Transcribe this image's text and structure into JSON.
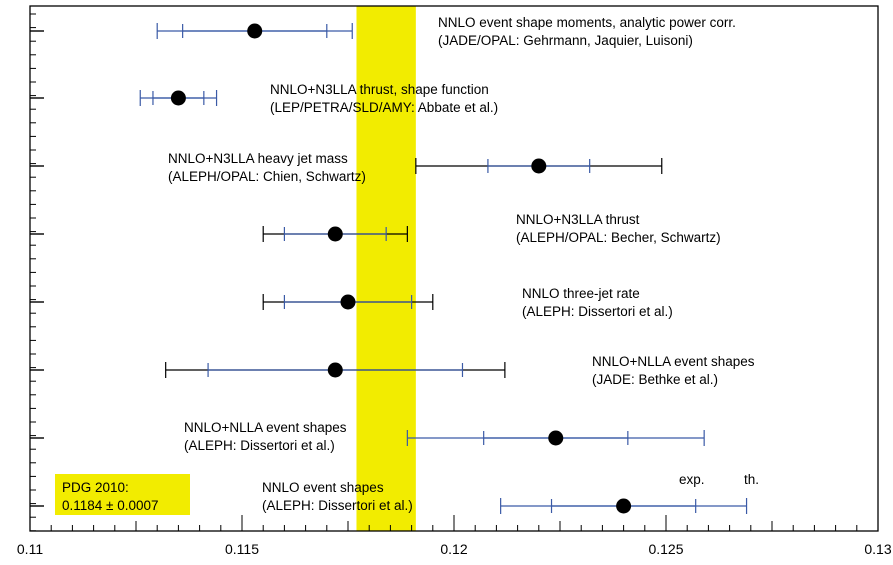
{
  "chart_data": {
    "type": "scatter",
    "xlim": [
      0.11,
      0.13
    ],
    "x_ticks": [
      "0.11",
      "0.115",
      "0.12",
      "0.125",
      "0.13"
    ],
    "x_tick_values": [
      0.11,
      0.115,
      0.12,
      0.125,
      0.13
    ],
    "band": {
      "low": 0.1177,
      "high": 0.1191,
      "color": "#f2ec00"
    },
    "pdg": {
      "line1": "PDG 2010:",
      "line2": "0.1184 ± 0.0007"
    },
    "legend_small": {
      "exp": "exp.",
      "th": "th."
    },
    "colors": {
      "exp_bar": "#3a5aa6",
      "th_bar": "#000000",
      "marker": "#000000",
      "pdg_box": "#f2ec00"
    },
    "measurements": [
      {
        "value": 0.1153,
        "exp_low": 0.1136,
        "exp_high": 0.117,
        "th_low": 0.113,
        "th_high": 0.1176,
        "th_color": "blue",
        "line1": "NNLO event shape moments, analytic power corr.",
        "line2": "(JADE/OPAL: Gehrmann, Jaquier, Luisoni)"
      },
      {
        "value": 0.1135,
        "exp_low": 0.1129,
        "exp_high": 0.1141,
        "th_low": 0.1126,
        "th_high": 0.1144,
        "th_color": "blue",
        "line1": "NNLO+N3LLA thrust, shape function",
        "line2": "(LEP/PETRA/SLD/AMY: Abbate et al.)"
      },
      {
        "value": 0.122,
        "exp_low": 0.1208,
        "exp_high": 0.1232,
        "th_low": 0.1191,
        "th_high": 0.1249,
        "th_color": "black",
        "line1": "NNLO+N3LLA heavy jet mass",
        "line2": "(ALEPH/OPAL: Chien, Schwartz)"
      },
      {
        "value": 0.1172,
        "exp_low": 0.116,
        "exp_high": 0.1184,
        "th_low": 0.1155,
        "th_high": 0.1189,
        "th_color": "black",
        "line1": "NNLO+N3LLA thrust",
        "line2": "(ALEPH/OPAL: Becher, Schwartz)"
      },
      {
        "value": 0.1175,
        "exp_low": 0.116,
        "exp_high": 0.119,
        "th_low": 0.1155,
        "th_high": 0.1195,
        "th_color": "black",
        "line1": "NNLO three-jet rate",
        "line2": "(ALEPH: Dissertori et al.)"
      },
      {
        "value": 0.1172,
        "exp_low": 0.1142,
        "exp_high": 0.1202,
        "th_low": 0.1132,
        "th_high": 0.1212,
        "th_color": "black",
        "line1": "NNLO+NLLA event shapes",
        "line2": "(JADE: Bethke et al.)"
      },
      {
        "value": 0.1224,
        "exp_low": 0.1207,
        "exp_high": 0.1241,
        "th_low": 0.1189,
        "th_high": 0.1259,
        "th_color": "blue",
        "line1": "NNLO+NLLA event shapes",
        "line2": "(ALEPH: Dissertori et al.)"
      },
      {
        "value": 0.124,
        "exp_low": 0.1223,
        "exp_high": 0.1257,
        "th_low": 0.1211,
        "th_high": 0.1269,
        "th_color": "blue",
        "line1": "NNLO event shapes",
        "line2": "(ALEPH: Dissertori et al.)"
      }
    ]
  }
}
